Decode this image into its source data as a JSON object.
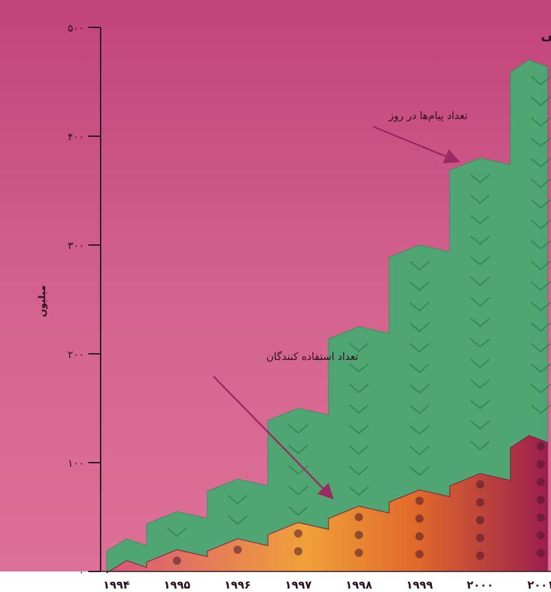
{
  "chart_data": {
    "type": "area",
    "title": "تعداد استفاده کنندگان و پیام‌های پست‌های الکترونیکی",
    "ylabel": "میلیون",
    "xlabel": "",
    "ylim": [
      0,
      500
    ],
    "yticks": [
      0,
      100,
      200,
      300,
      400,
      500
    ],
    "ytick_labels": [
      "۰",
      "۱۰۰",
      "۲۰۰",
      "۳۰۰",
      "۴۰۰",
      "۵۰۰"
    ],
    "categories": [
      "۱۹۹۴",
      "۱۹۹۵",
      "۱۹۹۶",
      "۱۹۹۷",
      "۱۹۹۸",
      "۱۹۹۹",
      "۲۰۰۰",
      "۲۰۰۱"
    ],
    "series": [
      {
        "name": "تعداد پیام‌ها در روز",
        "values": [
          30,
          55,
          85,
          150,
          225,
          300,
          380,
          470
        ],
        "color": "#4da36f"
      },
      {
        "name": "تعداد استفاده کنندگان",
        "values": [
          10,
          20,
          30,
          45,
          60,
          75,
          90,
          125
        ],
        "color": "#e2882e"
      }
    ],
    "annotations": [
      {
        "text": "تعداد پیام‌ها در روز",
        "series": 0
      },
      {
        "text": "تعداد استفاده کنندگان",
        "series": 1
      }
    ],
    "grid": false,
    "legend": "none"
  },
  "colors": {
    "background_top": "#c1447a",
    "background_bottom": "#d96a93",
    "messages_area": "#4fa673",
    "users_area": "#e2882e",
    "arrow": "#9b2a62"
  }
}
